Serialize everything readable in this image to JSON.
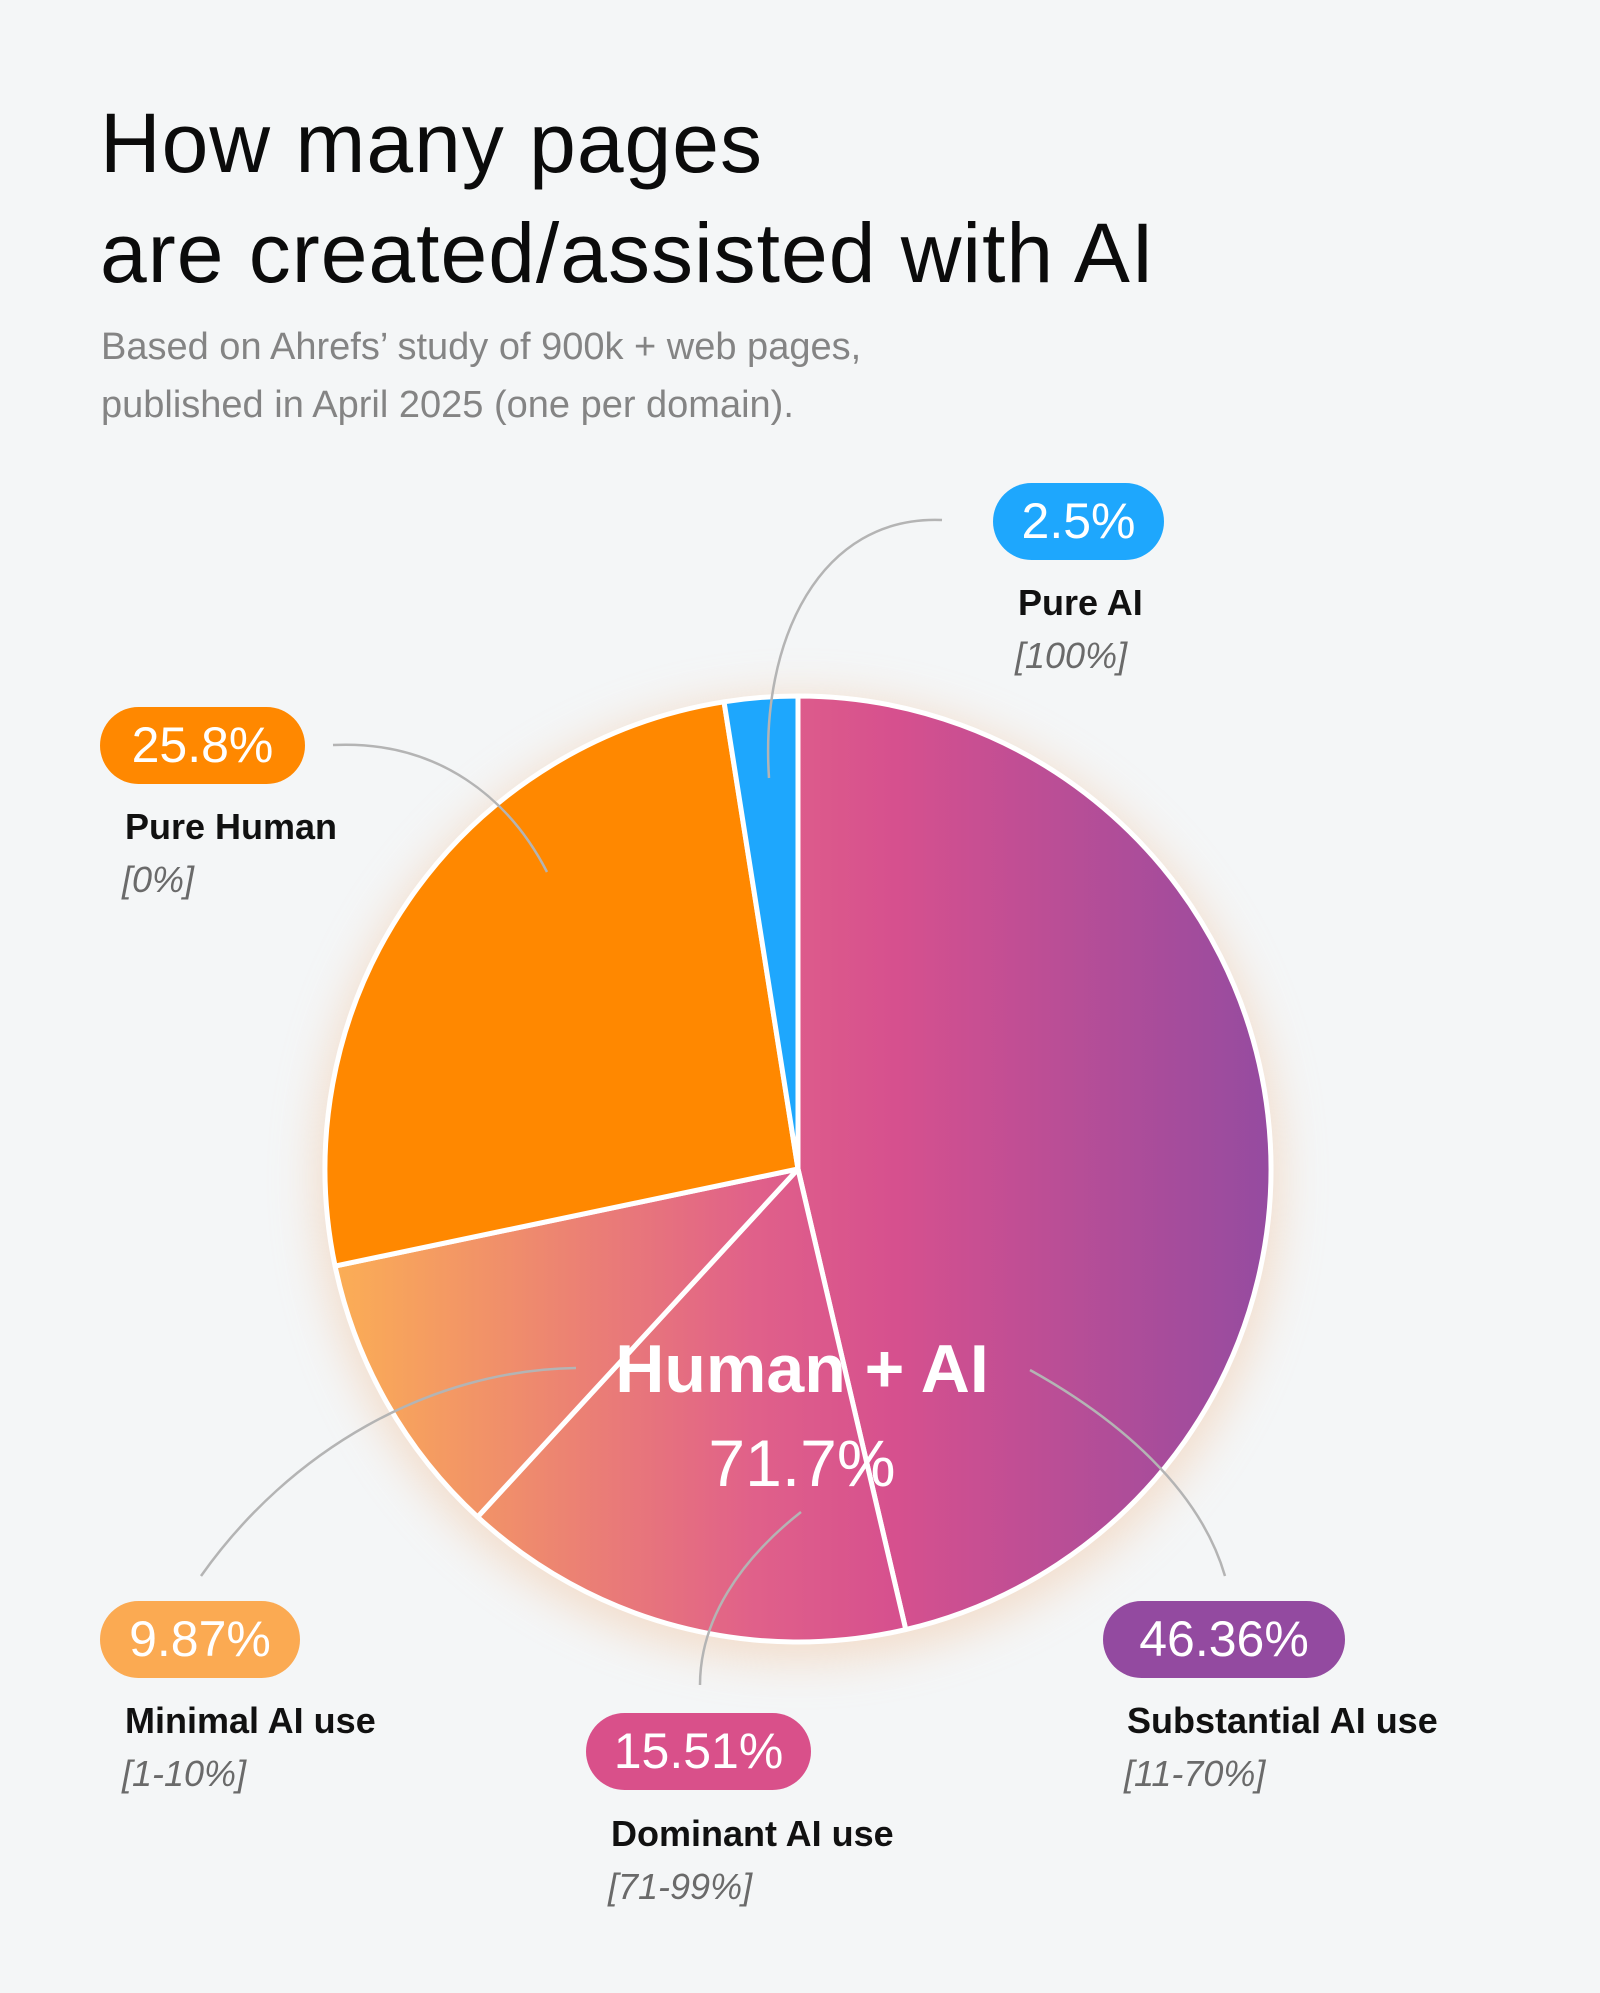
{
  "title_lines": [
    "How many pages",
    "are created/assisted with AI"
  ],
  "subtitle_lines": [
    "Based on Ahrefs’ study of 900k + web pages,",
    "published in April 2025 (one per domain)."
  ],
  "chart_data": {
    "type": "pie",
    "title": "How many pages are created/assisted with AI",
    "start": "12 o'clock, clockwise",
    "slices": [
      {
        "name": "Substantial AI use",
        "range": "[11-70%]",
        "value": 46.36,
        "label": "46.36%",
        "color": "#9a4a9e"
      },
      {
        "name": "Dominant AI use",
        "range": "[71-99%]",
        "value": 15.51,
        "label": "15.51%",
        "color": "#d9508a"
      },
      {
        "name": "Minimal AI use",
        "range": "[1-10%]",
        "value": 9.87,
        "label": "9.87%",
        "color": "#fbaa52"
      },
      {
        "name": "Pure Human",
        "range": "[0%]",
        "value": 25.8,
        "label": "25.8%",
        "color": "#ff8800"
      },
      {
        "name": "Pure AI",
        "range": "[100%]",
        "value": 2.5,
        "label": "2.5%",
        "color": "#1ea7fd"
      }
    ],
    "group": {
      "name": "Human + AI",
      "label": "71.7%",
      "value": 71.7
    }
  }
}
